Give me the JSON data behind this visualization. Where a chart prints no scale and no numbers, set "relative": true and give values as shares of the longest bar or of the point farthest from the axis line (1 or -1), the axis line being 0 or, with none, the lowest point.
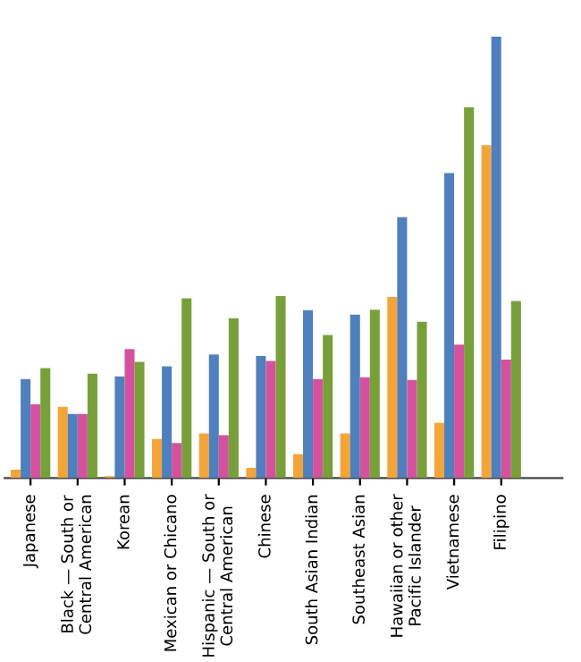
{
  "chart_data": {
    "type": "bar",
    "relative": true,
    "categories": [
      "Japanese",
      "Black — South or\nCentral American",
      "Korean",
      "Mexican or Chicano",
      "Hispanic — South or\nCentral American",
      "Chinese",
      "South Asian Indian",
      "Southeast Asian",
      "Hawaiian or other\nPacific Islander",
      "Vietnamese",
      "Filipino"
    ],
    "series": [
      {
        "color": "#f3a53a",
        "values": [
          0.019,
          0.161,
          0.004,
          0.088,
          0.101,
          0.023,
          0.054,
          0.101,
          0.41,
          0.125,
          0.754
        ]
      },
      {
        "color": "#4f7fbd",
        "values": [
          0.224,
          0.145,
          0.23,
          0.253,
          0.28,
          0.276,
          0.38,
          0.37,
          0.591,
          0.691,
          1
        ]
      },
      {
        "color": "#d4529d",
        "values": [
          0.167,
          0.145,
          0.292,
          0.079,
          0.097,
          0.265,
          0.224,
          0.228,
          0.222,
          0.302,
          0.268
        ]
      },
      {
        "color": "#77a03b",
        "values": [
          0.249,
          0.236,
          0.263,
          0.407,
          0.362,
          0.412,
          0.324,
          0.381,
          0.354,
          0.84,
          0.401
        ]
      }
    ],
    "grid": false,
    "legend": false
  }
}
